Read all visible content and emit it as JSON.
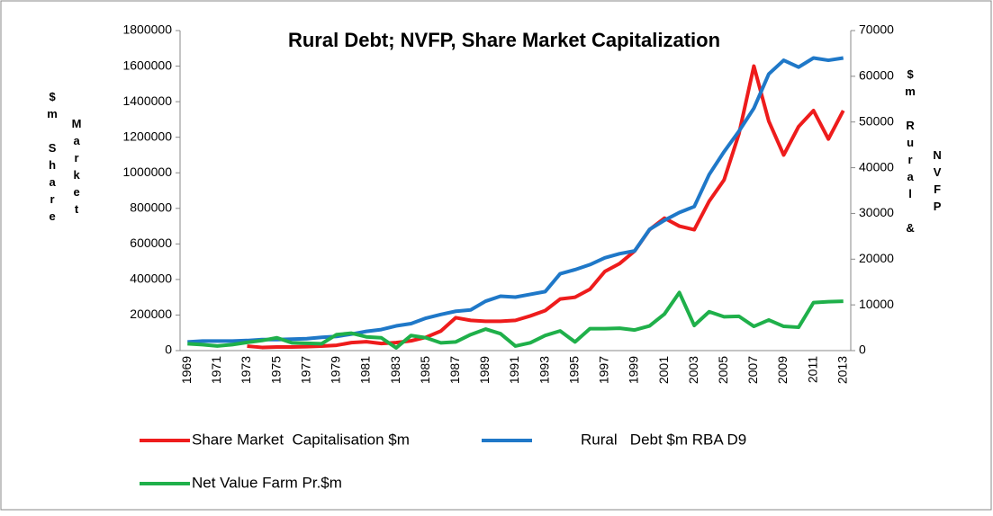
{
  "chart_data": {
    "type": "line",
    "title": "Rural Debt; NVFP, Share Market Capitalization",
    "y_label": [
      "$m Share",
      "Market"
    ],
    "y2_label": [
      "$m Rural &",
      "NVFP"
    ],
    "categories": [
      "1969",
      null,
      "1971",
      null,
      "1973",
      null,
      "1975",
      null,
      "1977",
      null,
      "1979",
      null,
      "1981",
      null,
      "1983",
      null,
      "1985",
      null,
      "1987",
      null,
      "1989",
      null,
      "1991",
      null,
      "1993",
      null,
      "1995",
      null,
      "1997",
      null,
      "1999",
      null,
      "2001",
      null,
      "2003",
      null,
      "2005",
      null,
      "2007",
      null,
      "2009",
      null,
      "2011",
      null,
      "2013"
    ],
    "series": [
      {
        "name": "Share Market  Capitalisation $m",
        "color": "#ee1c1c",
        "axis": "y",
        "values": [
          null,
          null,
          null,
          null,
          25000,
          18000,
          20000,
          20000,
          22000,
          25000,
          30000,
          45000,
          50000,
          40000,
          45000,
          55000,
          75000,
          110000,
          185000,
          170000,
          165000,
          165000,
          170000,
          195000,
          225000,
          290000,
          300000,
          345000,
          445000,
          490000,
          560000,
          680000,
          745000,
          700000,
          680000,
          840000,
          960000,
          1220000,
          1600000,
          1290000,
          1100000,
          1260000,
          1350000,
          1190000,
          1350000
        ]
      },
      {
        "name": "Rural   Debt $m RBA D9",
        "color": "#1f78c8",
        "axis": "y2",
        "values": [
          1900,
          2100,
          2100,
          2100,
          2200,
          2400,
          2400,
          2500,
          2600,
          2900,
          3100,
          3600,
          4200,
          4600,
          5400,
          5900,
          7100,
          7900,
          8600,
          8900,
          10800,
          11900,
          11700,
          12300,
          12900,
          16800,
          17700,
          18800,
          20300,
          21200,
          21800,
          26500,
          28500,
          30200,
          31500,
          38500,
          43500,
          48000,
          53000,
          60500,
          63500,
          62000,
          64000,
          63500,
          64000
        ]
      },
      {
        "name": "Net Value Farm Pr.$m",
        "color": "#1fb04a",
        "axis": "y2",
        "values": [
          1500,
          1300,
          1000,
          1300,
          1800,
          2200,
          2800,
          1700,
          1600,
          1500,
          3500,
          3800,
          3000,
          2800,
          600,
          3300,
          2800,
          1700,
          1900,
          3500,
          4700,
          3700,
          1000,
          1700,
          3300,
          4300,
          1900,
          4800,
          4800,
          4900,
          4500,
          5400,
          8000,
          12700,
          5500,
          8500,
          7400,
          7500,
          5300,
          6700,
          5300,
          5100,
          10500,
          10700,
          10800
        ]
      }
    ],
    "ylim": [
      0,
      1800000
    ],
    "yticks": [
      0,
      200000,
      400000,
      600000,
      800000,
      1000000,
      1200000,
      1400000,
      1600000,
      1800000
    ],
    "y2lim": [
      0,
      70000
    ],
    "y2ticks": [
      0,
      10000,
      20000,
      30000,
      40000,
      50000,
      60000,
      70000
    ]
  }
}
